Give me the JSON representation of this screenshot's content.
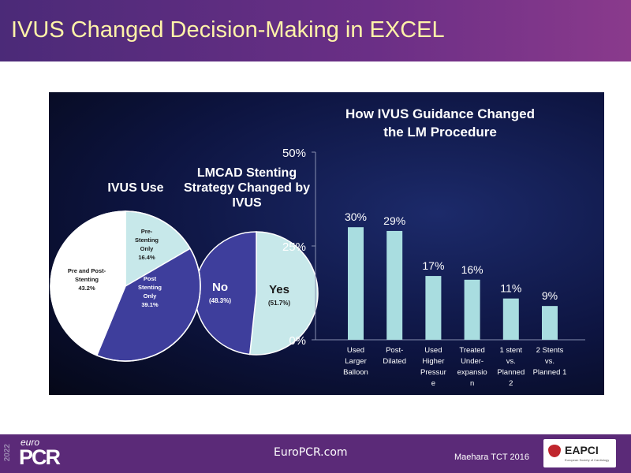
{
  "slide": {
    "title": "IVUS Changed Decision-Making in EXCEL"
  },
  "footer": {
    "year": "2022",
    "logo_euro": "euro",
    "logo_pcr": "PCR",
    "website": "EuroPCR.com",
    "citation": "Maehara TCT 2016",
    "partner_logo": "EAPCI",
    "partner_sub": "European Society of Cardiology"
  },
  "colors": {
    "light": "#c7e8ea",
    "blue": "#3e3e9c",
    "white": "#ffffff",
    "bar": "#a9dde0",
    "title_text": "#fff3a8"
  },
  "chart_data": [
    {
      "type": "pie",
      "title": "IVUS Use",
      "slices": [
        {
          "label": "Pre-Stenting Only",
          "value": 16.4,
          "value_label": "16.4%",
          "color": "#c7e8ea"
        },
        {
          "label": "Post Stenting Only",
          "value": 39.1,
          "value_label": "39.1%",
          "color": "#3e3e9c"
        },
        {
          "label": "Pre and Post-Stenting",
          "value": 43.2,
          "value_label": "43.2%",
          "color": "#ffffff"
        }
      ]
    },
    {
      "type": "pie",
      "title": "LMCAD Stenting Strategy Changed by IVUS",
      "slices": [
        {
          "label": "Yes",
          "value": 51.7,
          "value_label": "(51.7%)",
          "color": "#c7e8ea"
        },
        {
          "label": "No",
          "value": 48.3,
          "value_label": "(48.3%)",
          "color": "#3e3e9c"
        }
      ]
    },
    {
      "type": "bar",
      "title": "How IVUS Guidance Changed the LM Procedure",
      "categories": [
        "Used Larger Balloon",
        "Post-Dilated",
        "Used Higher Pressure",
        "Treated Under-expansion",
        "1 stent vs. Planned 2",
        "2 Stents vs. Planned 1"
      ],
      "values": [
        30,
        29,
        17,
        16,
        11,
        9
      ],
      "data_labels": [
        "30%",
        "29%",
        "17%",
        "16%",
        "11%",
        "9%"
      ],
      "yticks": [
        "0%",
        "25%",
        "50%"
      ],
      "ylim": [
        0,
        50
      ],
      "grid": false
    }
  ]
}
